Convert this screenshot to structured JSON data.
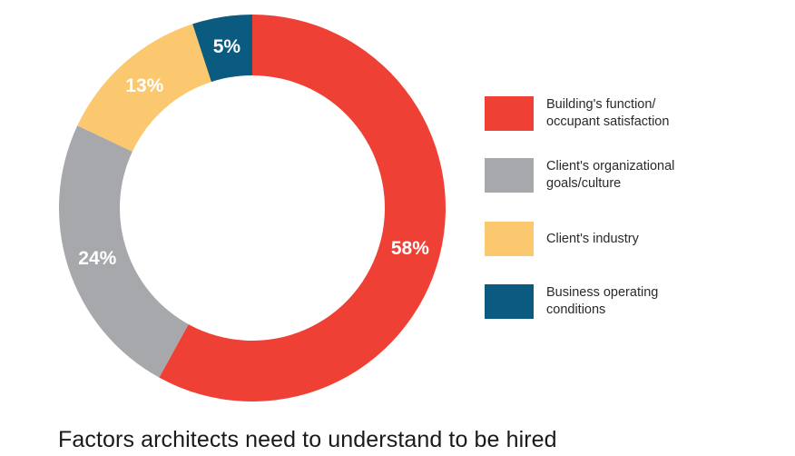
{
  "chart_data": {
    "type": "pie",
    "title": "Factors architects need to understand to be hired",
    "labels": [
      "Building's function/ occupant satisfaction",
      "Client's organizational goals/culture",
      "Client's industry",
      "Business operating conditions"
    ],
    "legend_lines": [
      [
        "Building's function/",
        "occupant satisfaction"
      ],
      [
        "Client's organizational",
        "goals/culture"
      ],
      [
        "Client's industry"
      ],
      [
        "Business operating",
        "conditions"
      ]
    ],
    "values": [
      58,
      24,
      13,
      5
    ],
    "value_labels": [
      "58%",
      "24%",
      "13%",
      "5%"
    ],
    "unit": "%",
    "colors": [
      "#ee4035",
      "#a7a8ac",
      "#fcc86f",
      "#0b5a80"
    ],
    "donut": true,
    "legend_position": "right"
  }
}
